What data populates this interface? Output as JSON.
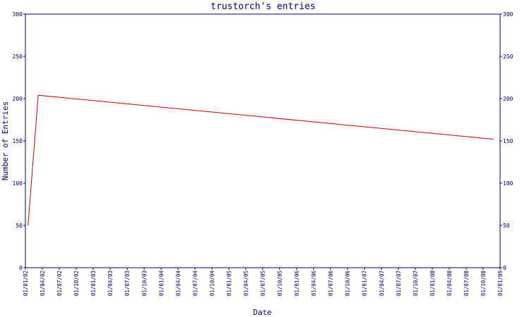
{
  "chart_data": {
    "type": "line",
    "title": "trustorch's entries",
    "xlabel": "Date",
    "ylabel": "Number of Entries",
    "ylim": [
      0,
      300
    ],
    "yticks": [
      0,
      50,
      100,
      150,
      200,
      250,
      300
    ],
    "xticks": [
      "01/01/02",
      "01/04/02",
      "01/07/02",
      "01/10/02",
      "01/01/03",
      "01/04/03",
      "01/07/03",
      "01/10/03",
      "01/01/04",
      "01/04/04",
      "01/07/04",
      "01/10/04",
      "01/01/05",
      "01/04/05",
      "01/07/05",
      "01/10/05",
      "01/01/06",
      "01/04/06",
      "01/07/06",
      "01/10/06",
      "01/01/07",
      "01/04/07",
      "01/07/07",
      "01/10/07",
      "01/01/08",
      "01/04/08",
      "01/07/08",
      "01/10/08",
      "01/01/09"
    ],
    "grid": false,
    "series": [
      {
        "color": "#cc0000",
        "points": [
          {
            "x": "2002-01-15",
            "y": 50
          },
          {
            "x": "2002-03-10",
            "y": 204
          },
          {
            "x": "2008-11-25",
            "y": 152
          }
        ]
      }
    ]
  }
}
